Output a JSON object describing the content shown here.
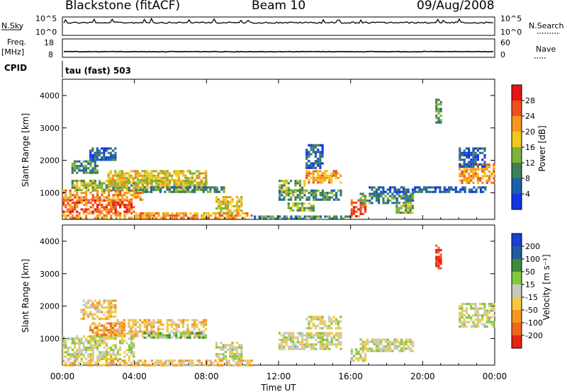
{
  "header": {
    "station": "Blackstone (fitACF)",
    "beam": "Beam 10",
    "date": "09/Aug/2008"
  },
  "param_panel": {
    "nsky_label": "N.Sky",
    "nsky_ticks": [
      "10^5",
      "10^0"
    ],
    "nsky_right_ticks": [
      "10^5",
      "10^0"
    ],
    "nsearch_label": "N.Search",
    "freq_label": "Freq.",
    "freq_unit": "[MHz]",
    "freq_ticks": [
      "18",
      "8"
    ],
    "nave_ticks": [
      "60",
      "0"
    ],
    "nave_label": "Nave",
    "cpid_label": "CPID",
    "cpid_value": "tau (fast) 503"
  },
  "colors": {
    "power_scale": [
      "#1434e6",
      "#1c5fb0",
      "#3f7f54",
      "#7fb23a",
      "#f0c81e",
      "#f5961e",
      "#f0501e",
      "#e61414"
    ],
    "velocity_scale": [
      "#1c3cd2",
      "#235aa0",
      "#3c8c3c",
      "#82c83c",
      "#c8c8c0",
      "#f5c83c",
      "#f5961e",
      "#f0641e",
      "#e62314"
    ]
  },
  "chart_data": [
    {
      "type": "heatmap",
      "title": "Power",
      "ylabel": "Slant Range [km]",
      "yticks": [
        "1000",
        "2000",
        "3000",
        "4000"
      ],
      "ylim": [
        180,
        4500
      ],
      "xlim": [
        "00:00",
        "24:00"
      ],
      "xticks": [
        "00:00",
        "04:00",
        "08:00",
        "12:00",
        "16:00",
        "20:00",
        "00:00"
      ],
      "colorbar_label": "Power [dB]",
      "colorbar_ticks": [
        "4",
        "8",
        "12",
        "16",
        "20",
        "24",
        "28"
      ],
      "clim": [
        0,
        32
      ],
      "regions": [
        {
          "t0": 0.0,
          "t1": 10.5,
          "r0": 200,
          "r1": 400,
          "level": 5
        },
        {
          "t0": 0.0,
          "t1": 4.0,
          "r0": 400,
          "r1": 800,
          "level": 6
        },
        {
          "t0": 0.0,
          "t1": 4.5,
          "r0": 800,
          "r1": 1100,
          "level": 5
        },
        {
          "t0": 0.5,
          "t1": 8.0,
          "r0": 1100,
          "r1": 1400,
          "level": 3
        },
        {
          "t0": 0.5,
          "t1": 2.0,
          "r0": 1600,
          "r1": 2000,
          "level": 2
        },
        {
          "t0": 1.5,
          "t1": 3.0,
          "r0": 2000,
          "r1": 2400,
          "level": 1
        },
        {
          "t0": 2.5,
          "t1": 8.0,
          "r0": 1200,
          "r1": 1700,
          "level": 4
        },
        {
          "t0": 4.5,
          "t1": 9.0,
          "r0": 1000,
          "r1": 1200,
          "level": 2
        },
        {
          "t0": 8.5,
          "t1": 10.0,
          "r0": 400,
          "r1": 900,
          "level": 4
        },
        {
          "t0": 12.0,
          "t1": 15.5,
          "r0": 800,
          "r1": 1100,
          "level": 2
        },
        {
          "t0": 13.5,
          "t1": 15.5,
          "r0": 1300,
          "r1": 1700,
          "level": 5
        },
        {
          "t0": 13.5,
          "t1": 14.5,
          "r0": 1800,
          "r1": 2500,
          "level": 1
        },
        {
          "t0": 12.0,
          "t1": 13.5,
          "r0": 1000,
          "r1": 1400,
          "level": 3
        },
        {
          "t0": 12.5,
          "t1": 14.0,
          "r0": 450,
          "r1": 700,
          "level": 3
        },
        {
          "t0": 16.0,
          "t1": 16.8,
          "r0": 250,
          "r1": 800,
          "level": 6
        },
        {
          "t0": 16.5,
          "t1": 19.5,
          "r0": 700,
          "r1": 1000,
          "level": 2
        },
        {
          "t0": 18.5,
          "t1": 19.5,
          "r0": 400,
          "r1": 700,
          "level": 3
        },
        {
          "t0": 17.0,
          "t1": 23.5,
          "r0": 1000,
          "r1": 1200,
          "level": 1
        },
        {
          "t0": 20.7,
          "t1": 21.0,
          "r0": 3200,
          "r1": 3900,
          "level": 2
        },
        {
          "t0": 22.0,
          "t1": 23.9,
          "r0": 1300,
          "r1": 1900,
          "level": 5
        },
        {
          "t0": 22.0,
          "t1": 23.5,
          "r0": 1800,
          "r1": 2400,
          "level": 1
        },
        {
          "t0": 10.5,
          "t1": 16.0,
          "r0": 180,
          "r1": 300,
          "level": 2
        }
      ]
    },
    {
      "type": "heatmap",
      "title": "Velocity",
      "ylabel": "Slant Range [km]",
      "yticks": [
        "1000",
        "2000",
        "3000",
        "4000"
      ],
      "ylim": [
        180,
        4500
      ],
      "xlim": [
        "00:00",
        "24:00"
      ],
      "xticks": [
        "00:00",
        "04:00",
        "08:00",
        "12:00",
        "16:00",
        "20:00",
        "00:00"
      ],
      "xlabel": "Time UT",
      "colorbar_label": "Velocity [m s⁻¹]",
      "colorbar_ticks": [
        "200",
        "100",
        "50",
        "15",
        "-15",
        "-50",
        "-100",
        "-200"
      ],
      "regions": [
        {
          "t0": 0.0,
          "t1": 4.0,
          "r0": 400,
          "r1": 1100,
          "level": 4
        },
        {
          "t0": 1.5,
          "t1": 3.5,
          "r0": 1100,
          "r1": 1500,
          "level": 6
        },
        {
          "t0": 3.0,
          "t1": 8.0,
          "r0": 1100,
          "r1": 1600,
          "level": 5
        },
        {
          "t0": 1.0,
          "t1": 3.0,
          "r0": 1600,
          "r1": 2200,
          "level": 5
        },
        {
          "t0": 4.5,
          "t1": 8.0,
          "r0": 1000,
          "r1": 1200,
          "level": 3
        },
        {
          "t0": 8.5,
          "t1": 10.0,
          "r0": 400,
          "r1": 900,
          "level": 4
        },
        {
          "t0": 12.0,
          "t1": 15.5,
          "r0": 700,
          "r1": 1200,
          "level": 4
        },
        {
          "t0": 13.5,
          "t1": 15.5,
          "r0": 1300,
          "r1": 1700,
          "level": 4
        },
        {
          "t0": 16.0,
          "t1": 16.8,
          "r0": 300,
          "r1": 700,
          "level": 4
        },
        {
          "t0": 16.5,
          "t1": 19.5,
          "r0": 600,
          "r1": 1000,
          "level": 4
        },
        {
          "t0": 20.7,
          "t1": 21.0,
          "r0": 3200,
          "r1": 3900,
          "level": 8
        },
        {
          "t0": 22.0,
          "t1": 23.9,
          "r0": 1400,
          "r1": 2100,
          "level": 4
        },
        {
          "t0": 0.0,
          "t1": 10.5,
          "r0": 200,
          "r1": 350,
          "level": 5
        }
      ]
    }
  ]
}
